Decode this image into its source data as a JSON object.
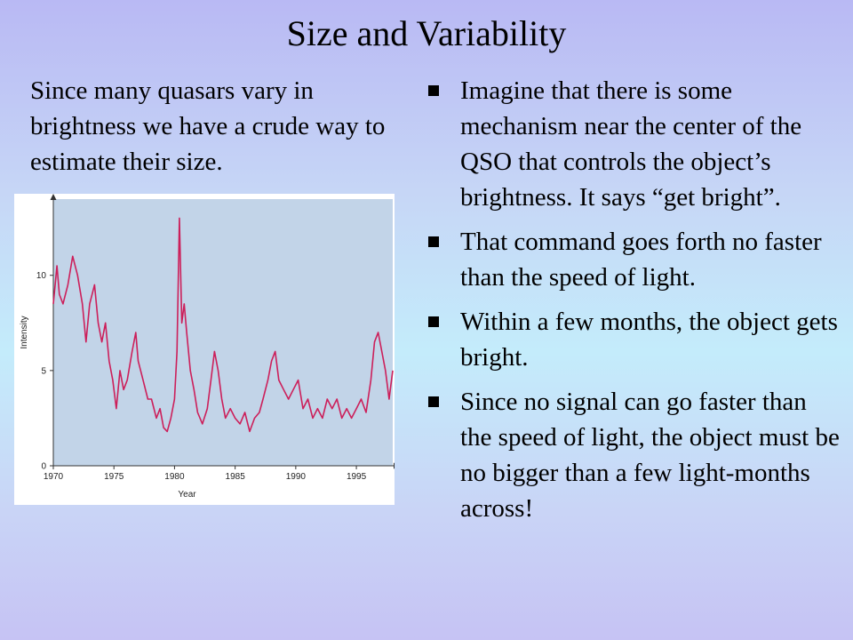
{
  "slide": {
    "title": "Size and Variability",
    "intro": "Since many quasars vary in brightness we have a crude way to estimate their size.",
    "bullets": [
      "Imagine that there is some mechanism near the center of the QSO that controls the object’s brightness.  It says “get bright”.",
      "That command goes forth no faster than the speed of light.",
      "Within a few months, the object gets bright.",
      "Since no signal can go faster than the speed of light, the object must be no bigger than a few light-months across!"
    ]
  },
  "chart_data": {
    "type": "line",
    "title": "",
    "xlabel": "Year",
    "ylabel": "Intensity",
    "xlim": [
      1970,
      1998
    ],
    "ylim": [
      0,
      14
    ],
    "x_ticks": [
      "1970",
      "1975",
      "1980",
      "1985",
      "1990",
      "1995"
    ],
    "y_ticks": [
      "0",
      "5",
      "10"
    ],
    "grid": false,
    "colors": {
      "line": "#cc1f5a",
      "plot_background": "#c2d4e8"
    },
    "series": [
      {
        "x": [
          1970.0,
          1970.3,
          1970.5,
          1970.8,
          1971.2,
          1971.6,
          1972.0,
          1972.4,
          1972.7,
          1973.0,
          1973.4,
          1973.7,
          1974.0,
          1974.3,
          1974.6,
          1974.9,
          1975.2,
          1975.5,
          1975.8,
          1976.1,
          1976.5,
          1976.8,
          1977.0,
          1977.4,
          1977.8,
          1978.1,
          1978.5,
          1978.8,
          1979.1,
          1979.4,
          1979.7,
          1980.0,
          1980.2,
          1980.4,
          1980.6,
          1980.8,
          1981.0,
          1981.3,
          1981.6,
          1981.9,
          1982.3,
          1982.7,
          1983.0,
          1983.3,
          1983.6,
          1983.9,
          1984.2,
          1984.6,
          1985.0,
          1985.4,
          1985.8,
          1986.2,
          1986.6,
          1987.0,
          1987.3,
          1987.7,
          1988.0,
          1988.3,
          1988.6,
          1989.0,
          1989.4,
          1989.8,
          1990.2,
          1990.6,
          1991.0,
          1991.4,
          1991.8,
          1992.2,
          1992.6,
          1993.0,
          1993.4,
          1993.8,
          1994.2,
          1994.6,
          1995.0,
          1995.4,
          1995.8,
          1996.2,
          1996.5,
          1996.8,
          1997.1,
          1997.4,
          1997.7,
          1998.0
        ],
        "values": [
          8.5,
          10.5,
          9.0,
          8.5,
          9.5,
          11.0,
          10.0,
          8.5,
          6.5,
          8.5,
          9.5,
          7.5,
          6.5,
          7.5,
          5.5,
          4.5,
          3.0,
          5.0,
          4.0,
          4.5,
          6.0,
          7.0,
          5.5,
          4.5,
          3.5,
          3.5,
          2.5,
          3.0,
          2.0,
          1.8,
          2.5,
          3.5,
          6.0,
          13.0,
          7.5,
          8.5,
          7.0,
          5.0,
          4.0,
          2.8,
          2.2,
          3.0,
          4.5,
          6.0,
          5.0,
          3.5,
          2.5,
          3.0,
          2.5,
          2.2,
          2.8,
          1.8,
          2.5,
          2.8,
          3.5,
          4.5,
          5.5,
          6.0,
          4.5,
          4.0,
          3.5,
          4.0,
          4.5,
          3.0,
          3.5,
          2.5,
          3.0,
          2.5,
          3.5,
          3.0,
          3.5,
          2.5,
          3.0,
          2.5,
          3.0,
          3.5,
          2.8,
          4.5,
          6.5,
          7.0,
          6.0,
          5.0,
          3.5,
          5.0
        ]
      }
    ]
  }
}
